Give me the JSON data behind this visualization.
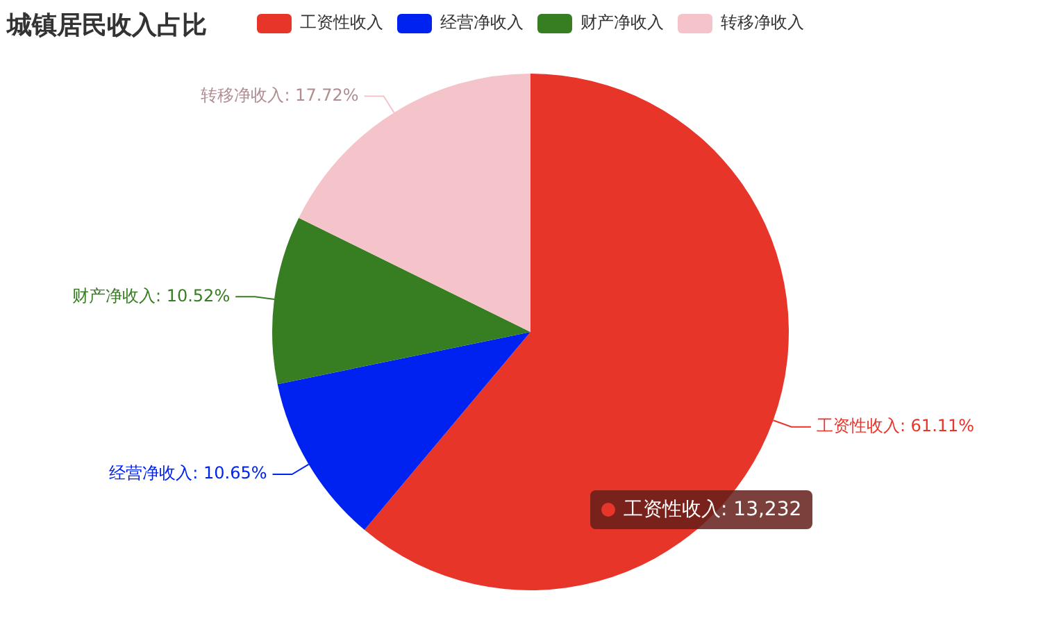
{
  "chart_data": {
    "type": "pie",
    "title": "城镇居民收入占比",
    "categories": [
      "工资性收入",
      "经营净收入",
      "财产净收入",
      "转移净收入"
    ],
    "values": [
      61.11,
      10.65,
      10.52,
      17.72
    ],
    "colors": [
      "#e8352a",
      "#0022f0",
      "#377e22",
      "#f5c4ca"
    ],
    "value_labels": [
      "工资性收入: 61.11%",
      "经营净收入: 10.65%",
      "财产净收入: 10.52%",
      "转移净收入: 17.72%"
    ],
    "legend": "top",
    "annotations": [
      "工资性收入: 13,232"
    ]
  }
}
